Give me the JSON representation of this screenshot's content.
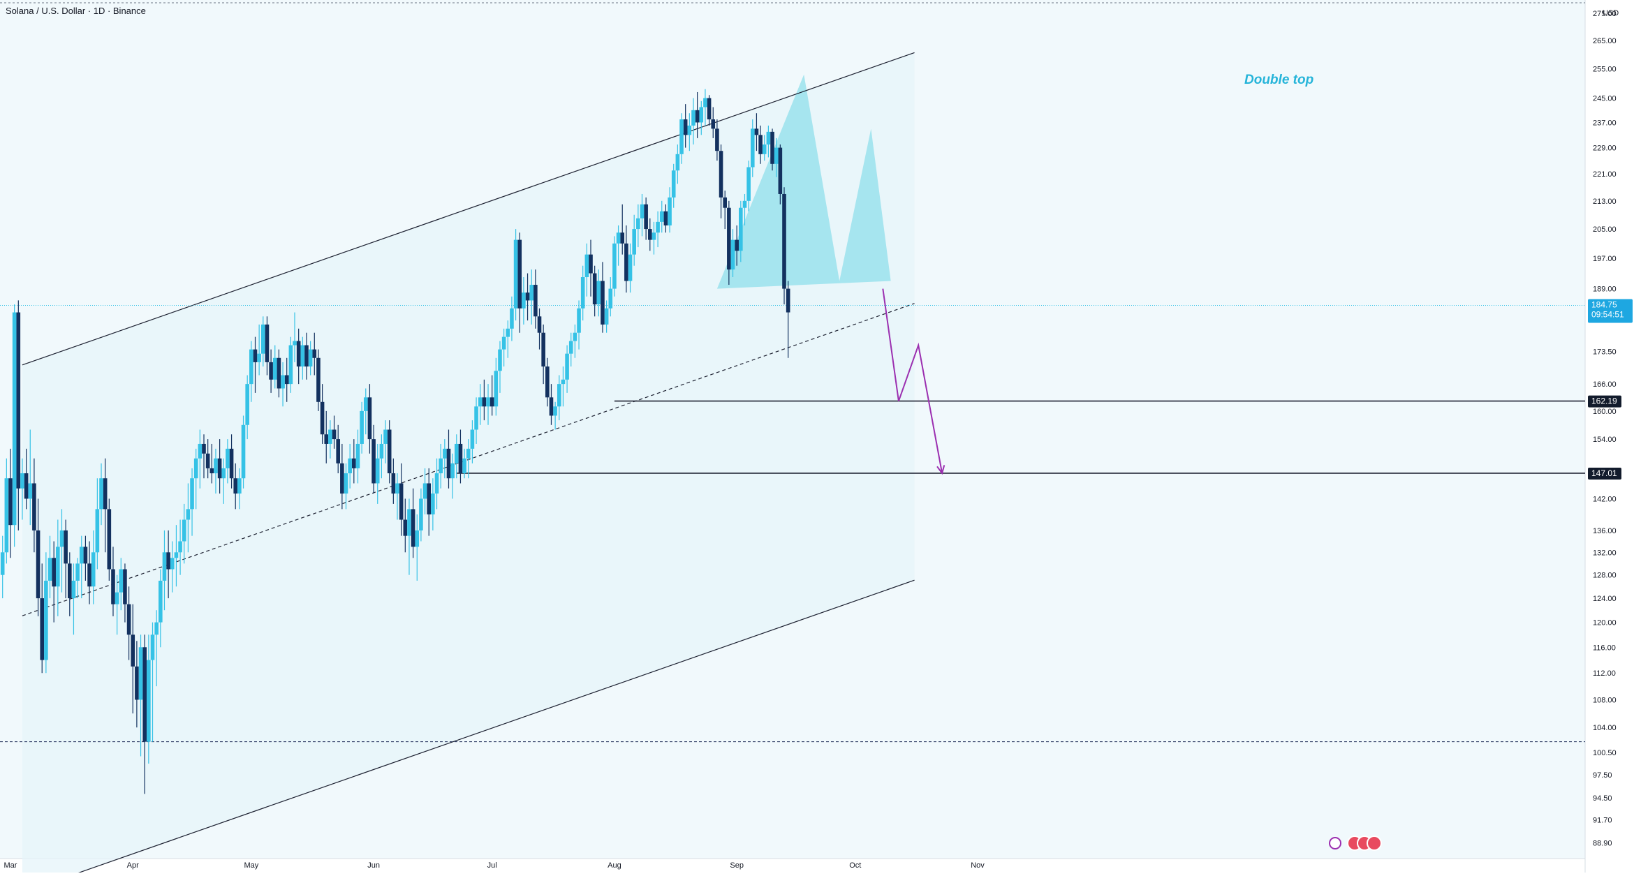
{
  "header": {
    "symbol_title": "Solana / U.S. Dollar · 1D · Binance"
  },
  "price_axis": {
    "currency": "USD",
    "current_price_label": "184.75",
    "countdown_label": "09:54:51",
    "level_1_label": "162.19",
    "level_2_label": "147.01"
  },
  "annotation": {
    "pattern_label": "Double top"
  },
  "colors": {
    "background": "#f1f9fc",
    "bull_candle": "#35c2e6",
    "bear_candle": "#13315f",
    "pattern_fill": "#8fdfeb",
    "projection_line": "#9b2fb0",
    "current_price_badge": "#1ea7e1",
    "label_badge": "#121b2c"
  },
  "chart_data": {
    "type": "candlestick",
    "title": "Solana / U.S. Dollar · 1D · Binance",
    "scale": "log",
    "ylabel": "USD",
    "ylim": [
      87,
      280
    ],
    "x_ticks": [
      {
        "label": "Mar",
        "date": "2024-03-01"
      },
      {
        "label": "Apr",
        "date": "2024-04-01"
      },
      {
        "label": "May",
        "date": "2024-05-01"
      },
      {
        "label": "Jun",
        "date": "2024-06-01"
      },
      {
        "label": "Jul",
        "date": "2024-07-01"
      },
      {
        "label": "Aug",
        "date": "2024-08-01"
      },
      {
        "label": "Sep",
        "date": "2024-09-01"
      },
      {
        "label": "Oct",
        "date": "2024-10-01"
      },
      {
        "label": "Nov",
        "date": "2024-11-01"
      }
    ],
    "y_ticks": [
      275.0,
      265.0,
      255.0,
      245.0,
      237.0,
      229.0,
      221.0,
      213.0,
      205.0,
      197.0,
      189.0,
      173.5,
      166.0,
      160.0,
      154.0,
      142.0,
      136.0,
      132.0,
      128.0,
      124.0,
      120.0,
      116.0,
      112.0,
      108.0,
      104.0,
      100.5,
      97.5,
      94.5,
      91.7,
      88.9
    ],
    "ohlc_start_date": "2024-02-28",
    "ohlc": [
      [
        128,
        135,
        124,
        132
      ],
      [
        132,
        150,
        130,
        146
      ],
      [
        146,
        152,
        131,
        137
      ],
      [
        137,
        185,
        133,
        183
      ],
      [
        183,
        186,
        136,
        144
      ],
      [
        144,
        150,
        138,
        147
      ],
      [
        147,
        152,
        140,
        142
      ],
      [
        142,
        156,
        137,
        145
      ],
      [
        145,
        150,
        132,
        136
      ],
      [
        136,
        142,
        121,
        124
      ],
      [
        124,
        130,
        112,
        114
      ],
      [
        114,
        132,
        112,
        127
      ],
      [
        127,
        135,
        124,
        131
      ],
      [
        131,
        134,
        120,
        126
      ],
      [
        126,
        138,
        121,
        133
      ],
      [
        133,
        140,
        125,
        136
      ],
      [
        136,
        138,
        124,
        130
      ],
      [
        130,
        132,
        121,
        124
      ],
      [
        124,
        130,
        118,
        127
      ],
      [
        127,
        131,
        124,
        130
      ],
      [
        130,
        135,
        124,
        133
      ],
      [
        133,
        135,
        127,
        130
      ],
      [
        130,
        134,
        123,
        126
      ],
      [
        126,
        136,
        123,
        132
      ],
      [
        132,
        146,
        129,
        140
      ],
      [
        140,
        149,
        137,
        146
      ],
      [
        146,
        150,
        132,
        140
      ],
      [
        140,
        142,
        127,
        129
      ],
      [
        129,
        133,
        121,
        123
      ],
      [
        123,
        128,
        118,
        125
      ],
      [
        125,
        131,
        122,
        129
      ],
      [
        129,
        130,
        120,
        123
      ],
      [
        123,
        126,
        114,
        118
      ],
      [
        118,
        123,
        106,
        113
      ],
      [
        113,
        117,
        104,
        108
      ],
      [
        108,
        118,
        100,
        116
      ],
      [
        116,
        118,
        95,
        102
      ],
      [
        102,
        118,
        99,
        114
      ],
      [
        114,
        120,
        102,
        118
      ],
      [
        118,
        122,
        110,
        120
      ],
      [
        120,
        129,
        116,
        127
      ],
      [
        127,
        136,
        122,
        132
      ],
      [
        132,
        136,
        124,
        129
      ],
      [
        129,
        134,
        125,
        131
      ],
      [
        131,
        137,
        126,
        132
      ],
      [
        132,
        138,
        128,
        134
      ],
      [
        134,
        141,
        130,
        138
      ],
      [
        138,
        145,
        132,
        140
      ],
      [
        140,
        148,
        135,
        146
      ],
      [
        146,
        152,
        140,
        150
      ],
      [
        150,
        156,
        144,
        153
      ],
      [
        153,
        155,
        146,
        151
      ],
      [
        151,
        154,
        146,
        148
      ],
      [
        148,
        153,
        145,
        147
      ],
      [
        147,
        152,
        143,
        150
      ],
      [
        150,
        154,
        143,
        146
      ],
      [
        146,
        150,
        141,
        148
      ],
      [
        148,
        154,
        145,
        152
      ],
      [
        152,
        155,
        144,
        146
      ],
      [
        146,
        149,
        140,
        143
      ],
      [
        143,
        148,
        140,
        146
      ],
      [
        146,
        159,
        144,
        157
      ],
      [
        157,
        168,
        154,
        166
      ],
      [
        166,
        176,
        162,
        174
      ],
      [
        174,
        177,
        164,
        171
      ],
      [
        171,
        180,
        168,
        173
      ],
      [
        173,
        182,
        170,
        180
      ],
      [
        180,
        182,
        168,
        171
      ],
      [
        171,
        174,
        164,
        167
      ],
      [
        167,
        175,
        165,
        172
      ],
      [
        172,
        174,
        163,
        165
      ],
      [
        165,
        171,
        161,
        168
      ],
      [
        168,
        172,
        162,
        166
      ],
      [
        166,
        177,
        164,
        175
      ],
      [
        175,
        183,
        171,
        176
      ],
      [
        176,
        179,
        166,
        170
      ],
      [
        170,
        177,
        167,
        175
      ],
      [
        175,
        178,
        167,
        170
      ],
      [
        170,
        176,
        168,
        174
      ],
      [
        174,
        178,
        168,
        172
      ],
      [
        172,
        174,
        160,
        162
      ],
      [
        162,
        166,
        153,
        155
      ],
      [
        155,
        160,
        149,
        153
      ],
      [
        153,
        158,
        150,
        156
      ],
      [
        156,
        159,
        152,
        154
      ],
      [
        154,
        157,
        147,
        149
      ],
      [
        149,
        153,
        140,
        143
      ],
      [
        143,
        149,
        140,
        147
      ],
      [
        147,
        153,
        144,
        150
      ],
      [
        150,
        154,
        145,
        148
      ],
      [
        148,
        156,
        145,
        153
      ],
      [
        153,
        162,
        151,
        160
      ],
      [
        160,
        165,
        155,
        163
      ],
      [
        163,
        166,
        151,
        154
      ],
      [
        154,
        157,
        143,
        145
      ],
      [
        145,
        153,
        141,
        150
      ],
      [
        150,
        155,
        146,
        153
      ],
      [
        153,
        158,
        149,
        156
      ],
      [
        156,
        158,
        145,
        147
      ],
      [
        147,
        150,
        141,
        143
      ],
      [
        143,
        147,
        138,
        145
      ],
      [
        145,
        149,
        135,
        138
      ],
      [
        138,
        142,
        132,
        135
      ],
      [
        135,
        142,
        128,
        140
      ],
      [
        140,
        144,
        131,
        133
      ],
      [
        133,
        139,
        127,
        136
      ],
      [
        136,
        144,
        134,
        142
      ],
      [
        142,
        148,
        139,
        145
      ],
      [
        145,
        148,
        135,
        139
      ],
      [
        139,
        146,
        136,
        143
      ],
      [
        143,
        150,
        140,
        147
      ],
      [
        147,
        153,
        144,
        150
      ],
      [
        150,
        154,
        146,
        152
      ],
      [
        152,
        156,
        144,
        146
      ],
      [
        146,
        151,
        142,
        149
      ],
      [
        149,
        155,
        146,
        153
      ],
      [
        153,
        156,
        145,
        147
      ],
      [
        147,
        152,
        146,
        150
      ],
      [
        150,
        154,
        146,
        152
      ],
      [
        152,
        158,
        149,
        156
      ],
      [
        156,
        163,
        153,
        161
      ],
      [
        161,
        166,
        157,
        163
      ],
      [
        163,
        167,
        158,
        161
      ],
      [
        161,
        166,
        157,
        163
      ],
      [
        163,
        168,
        159,
        161
      ],
      [
        161,
        172,
        159,
        169
      ],
      [
        169,
        176,
        164,
        174
      ],
      [
        174,
        179,
        170,
        177
      ],
      [
        177,
        181,
        172,
        179
      ],
      [
        179,
        187,
        176,
        184
      ],
      [
        184,
        205,
        181,
        202
      ],
      [
        202,
        204,
        178,
        184
      ],
      [
        184,
        192,
        180,
        188
      ],
      [
        188,
        193,
        181,
        186
      ],
      [
        186,
        194,
        180,
        190
      ],
      [
        190,
        194,
        179,
        182
      ],
      [
        182,
        184,
        174,
        178
      ],
      [
        178,
        180,
        166,
        170
      ],
      [
        170,
        172,
        161,
        163
      ],
      [
        163,
        166,
        157,
        159
      ],
      [
        159,
        162,
        156,
        161
      ],
      [
        161,
        168,
        158,
        166
      ],
      [
        166,
        170,
        161,
        167
      ],
      [
        167,
        175,
        164,
        173
      ],
      [
        173,
        178,
        170,
        176
      ],
      [
        176,
        180,
        172,
        178
      ],
      [
        178,
        186,
        174,
        184
      ],
      [
        184,
        195,
        181,
        192
      ],
      [
        192,
        201,
        187,
        198
      ],
      [
        198,
        202,
        187,
        193
      ],
      [
        193,
        195,
        182,
        185
      ],
      [
        185,
        194,
        182,
        191
      ],
      [
        191,
        196,
        178,
        180
      ],
      [
        180,
        186,
        178,
        184
      ],
      [
        184,
        192,
        182,
        189
      ],
      [
        189,
        203,
        187,
        201
      ],
      [
        201,
        206,
        195,
        204
      ],
      [
        204,
        212,
        198,
        201
      ],
      [
        201,
        206,
        188,
        191
      ],
      [
        191,
        201,
        188,
        198
      ],
      [
        198,
        209,
        195,
        205
      ],
      [
        205,
        212,
        200,
        208
      ],
      [
        208,
        215,
        203,
        212
      ],
      [
        212,
        214,
        202,
        205
      ],
      [
        205,
        208,
        199,
        202
      ],
      [
        202,
        207,
        198,
        204
      ],
      [
        204,
        210,
        200,
        207
      ],
      [
        207,
        213,
        204,
        210
      ],
      [
        210,
        212,
        204,
        206
      ],
      [
        206,
        217,
        204,
        214
      ],
      [
        214,
        224,
        211,
        222
      ],
      [
        222,
        230,
        218,
        227
      ],
      [
        227,
        240,
        224,
        238
      ],
      [
        238,
        243,
        229,
        233
      ],
      [
        233,
        240,
        228,
        236
      ],
      [
        236,
        245,
        230,
        241
      ],
      [
        241,
        247,
        232,
        237
      ],
      [
        237,
        244,
        233,
        242
      ],
      [
        242,
        248,
        236,
        245
      ],
      [
        245,
        246,
        236,
        238
      ],
      [
        238,
        242,
        232,
        235
      ],
      [
        235,
        238,
        225,
        228
      ],
      [
        228,
        230,
        208,
        214
      ],
      [
        214,
        216,
        205,
        211
      ],
      [
        211,
        213,
        190,
        194
      ],
      [
        194,
        205,
        192,
        202
      ],
      [
        202,
        206,
        195,
        199
      ],
      [
        199,
        213,
        196,
        211
      ],
      [
        211,
        215,
        206,
        213
      ],
      [
        213,
        225,
        210,
        223
      ],
      [
        223,
        238,
        220,
        235
      ],
      [
        235,
        240,
        228,
        233
      ],
      [
        233,
        236,
        224,
        227
      ],
      [
        227,
        233,
        225,
        230
      ],
      [
        230,
        236,
        226,
        234
      ],
      [
        234,
        235,
        222,
        224
      ],
      [
        224,
        232,
        220,
        229
      ],
      [
        229,
        230,
        212,
        215
      ],
      [
        215,
        217,
        185,
        189
      ],
      [
        189,
        191,
        172,
        183
      ]
    ],
    "channel_note": "ascending parallel channel with dashed median",
    "patterns": [
      {
        "label": "Double top",
        "peaks": [
          "2024-09-18",
          "2024-10-05"
        ]
      }
    ],
    "current_price": 184.75,
    "horizontal_levels": [
      162.19,
      147.01
    ],
    "projected_path": [
      {
        "date": "2024-10-08",
        "price": 189
      },
      {
        "date": "2024-10-12",
        "price": 162.19
      },
      {
        "date": "2024-10-17",
        "price": 175
      },
      {
        "date": "2024-10-23",
        "price": 147.01
      }
    ],
    "grid": false
  }
}
